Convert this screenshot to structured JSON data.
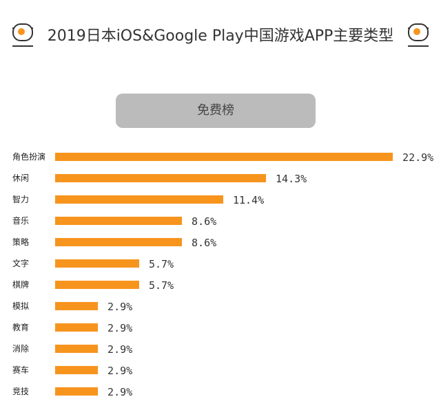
{
  "title": "2019日本iOS&Google Play中国游戏APP主要类型",
  "subtitle": "免费榜",
  "colors": {
    "bar": "#f7941d",
    "text": "#333333",
    "pill": "#bbbbbb"
  },
  "chart_data": {
    "type": "bar",
    "orientation": "horizontal",
    "title": "2019日本iOS&Google Play中国游戏APP主要类型",
    "subtitle": "免费榜",
    "categories": [
      "角色扮演",
      "休闲",
      "智力",
      "音乐",
      "策略",
      "文字",
      "棋牌",
      "模拟",
      "教育",
      "消除",
      "赛车",
      "竞技"
    ],
    "values": [
      22.9,
      14.3,
      11.4,
      8.6,
      8.6,
      5.7,
      5.7,
      2.9,
      2.9,
      2.9,
      2.9,
      2.9
    ],
    "value_labels": [
      "22.9%",
      "14.3%",
      "11.4%",
      "8.6%",
      "8.6%",
      "5.7%",
      "5.7%",
      "2.9%",
      "2.9%",
      "2.9%",
      "2.9%",
      "2.9%"
    ],
    "unit": "%",
    "grid": false,
    "legend": "none"
  }
}
